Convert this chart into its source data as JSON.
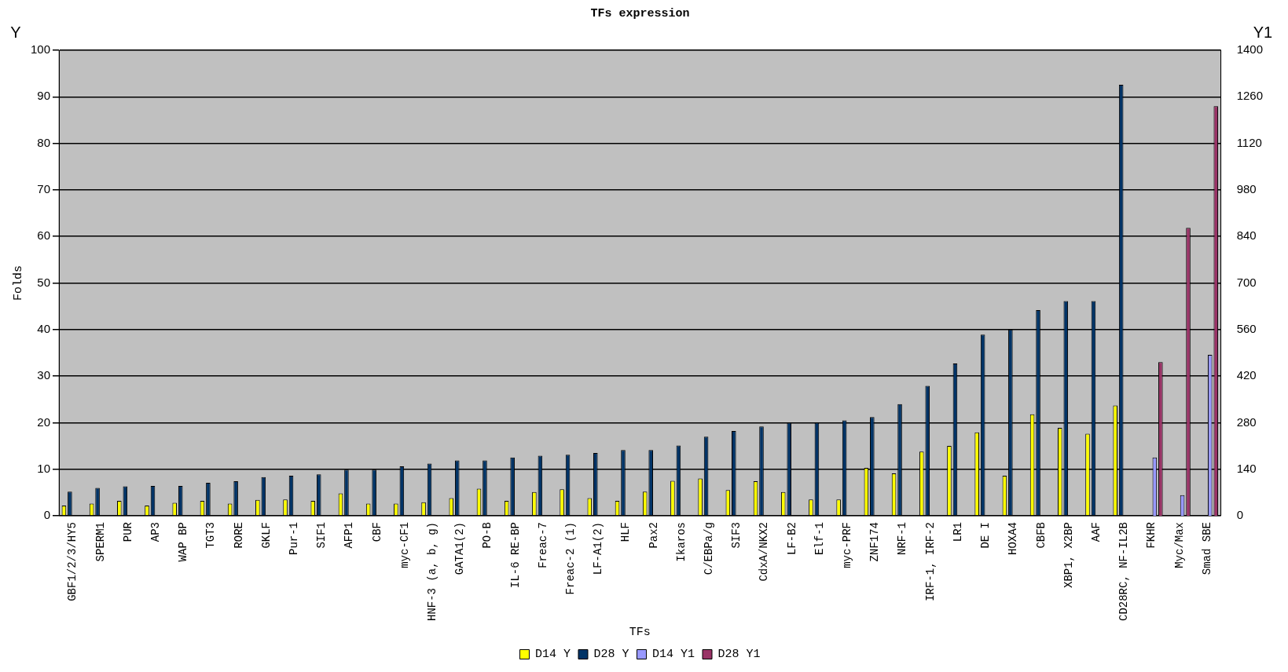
{
  "chart_data": {
    "type": "bar",
    "title": "TFs expression",
    "xlabel": "TFs",
    "ylabel": "Folds",
    "annotations": [
      "Y",
      "Y1"
    ],
    "categories": [
      "GBF1/2/3/HY5",
      "SPERM1",
      "PUR",
      "AP3",
      "WAP BP",
      "TGT3",
      "RORE",
      "GKLF",
      "Pur-1",
      "SIF1",
      "AFP1",
      "CBF",
      "myc-CF1",
      "HNF-3 (a, b, g)",
      "GATA1(2)",
      "PO-B",
      "IL-6 RE-BP",
      "Freac-7",
      "Freac-2 (1)",
      "LF-A1(2)",
      "HLF",
      "Pax2",
      "Ikaros",
      "C/EBPa/g",
      "SIF3",
      "CdxA/NKX2",
      "LF-B2",
      "Elf-1",
      "myc-PRF",
      "ZNF174",
      "NRF-1",
      "IRF-1, IRF-2",
      "LR1",
      "DE I",
      "HOXA4",
      "CBFB",
      "XBP1, X2BP",
      "AAF",
      "CD28RC, NF-IL2B",
      "FKHR",
      "Myc/Max",
      "Smad SBE"
    ],
    "series": [
      {
        "name": "D14 Y",
        "color": "#ffff00",
        "values": [
          2.2,
          2.6,
          3.2,
          2.2,
          2.8,
          3.2,
          2.6,
          3.4,
          3.5,
          3.2,
          4.8,
          2.6,
          2.6,
          2.9,
          3.8,
          5.8,
          3.2,
          5.1,
          5.7,
          3.8,
          3.2,
          5.2,
          7.5,
          8.0,
          5.5,
          7.4,
          5.1,
          3.5,
          3.5,
          10.3,
          9.1,
          13.8,
          15.0,
          17.9,
          8.6,
          21.8,
          18.9,
          17.6,
          23.7,
          null,
          null,
          null
        ]
      },
      {
        "name": "D28 Y",
        "color": "#003366",
        "values": [
          5.2,
          6.0,
          6.3,
          6.4,
          6.4,
          7.1,
          7.4,
          8.3,
          8.6,
          8.9,
          9.9,
          9.9,
          10.6,
          11.2,
          11.9,
          11.9,
          12.5,
          12.9,
          13.1,
          13.5,
          14.1,
          14.1,
          15.1,
          17.0,
          18.2,
          19.2,
          20.0,
          20.0,
          20.5,
          21.2,
          24.0,
          27.9,
          32.7,
          38.9,
          40.0,
          44.2,
          46.1,
          46.1,
          92.6,
          null,
          null,
          null
        ]
      },
      {
        "name": "D14 Y1",
        "color": "#9999ff",
        "axis": "y2",
        "values": [
          null,
          null,
          null,
          null,
          null,
          null,
          null,
          null,
          null,
          null,
          null,
          null,
          null,
          null,
          null,
          null,
          null,
          null,
          null,
          null,
          null,
          null,
          null,
          null,
          null,
          null,
          null,
          null,
          null,
          null,
          null,
          null,
          null,
          null,
          null,
          null,
          null,
          null,
          null,
          175,
          62,
          484
        ]
      },
      {
        "name": "D28 Y1",
        "color": "#993366",
        "axis": "y2",
        "values": [
          null,
          null,
          null,
          null,
          null,
          null,
          null,
          null,
          null,
          null,
          null,
          null,
          null,
          null,
          null,
          null,
          null,
          null,
          null,
          null,
          null,
          null,
          null,
          null,
          null,
          null,
          null,
          null,
          null,
          null,
          null,
          null,
          null,
          null,
          null,
          null,
          null,
          null,
          null,
          462,
          866,
          1232
        ]
      }
    ],
    "ylim": [
      0,
      100
    ],
    "yticks": [
      0,
      10,
      20,
      30,
      40,
      50,
      60,
      70,
      80,
      90,
      100
    ],
    "y2lim": [
      0,
      1400
    ],
    "y2ticks": [
      0,
      140,
      280,
      420,
      560,
      700,
      840,
      980,
      1120,
      1260,
      1400
    ],
    "grid": "y",
    "legend": "bottom"
  }
}
